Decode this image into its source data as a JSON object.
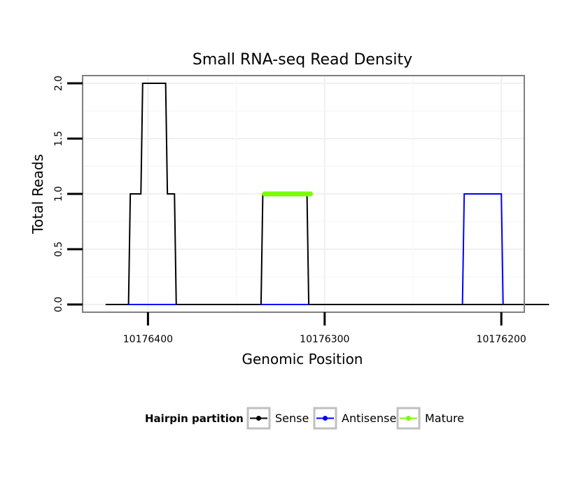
{
  "chart_data": {
    "type": "line",
    "title": "Small RNA-seq Read Density",
    "xlabel": "Genomic Position",
    "ylabel": "Total Reads",
    "x_reversed": true,
    "xlim": [
      10176437,
      10176187
    ],
    "ylim": [
      -0.07,
      2.07
    ],
    "x_ticks": [
      10176400,
      10176300,
      10176200
    ],
    "x_tick_labels": [
      "10176400",
      "10176300",
      "10176200"
    ],
    "y_ticks": [
      0,
      0.5,
      1,
      1.5,
      2
    ],
    "y_tick_labels": [
      "0.0",
      "0.5",
      "1.0",
      "1.5",
      "2.0"
    ],
    "grid": true,
    "legend": {
      "title": "Hairpin partition",
      "position": "bottom",
      "entries": [
        "Sense",
        "Antisense",
        "Mature"
      ]
    },
    "series": [
      {
        "name": "Sense",
        "color": "#000000",
        "points": [
          [
            10176424,
            0
          ],
          [
            10176411,
            0
          ],
          [
            10176410,
            1
          ],
          [
            10176404,
            1
          ],
          [
            10176403,
            2
          ],
          [
            10176390,
            2
          ],
          [
            10176389,
            1
          ],
          [
            10176385,
            1
          ],
          [
            10176384,
            0
          ],
          [
            10176336,
            0
          ],
          [
            10176335,
            1
          ],
          [
            10176310,
            1
          ],
          [
            10176309,
            0
          ],
          [
            10176173,
            0
          ]
        ]
      },
      {
        "name": "Antisense",
        "color": "#0000ff",
        "points": [
          [
            10176411,
            0
          ],
          [
            10176384,
            0
          ]
        ]
      },
      {
        "name": "Antisense",
        "color": "#0000ff",
        "points": [
          [
            10176336,
            0
          ],
          [
            10176309,
            0
          ]
        ]
      },
      {
        "name": "Antisense",
        "color": "#0000ff",
        "points": [
          [
            10176222,
            0
          ],
          [
            10176221,
            1
          ],
          [
            10176200,
            1
          ],
          [
            10176199,
            0
          ]
        ]
      },
      {
        "name": "Mature",
        "color": "#7cfc00",
        "points": [
          [
            10176334,
            1
          ],
          [
            10176308,
            1
          ]
        ]
      }
    ]
  }
}
